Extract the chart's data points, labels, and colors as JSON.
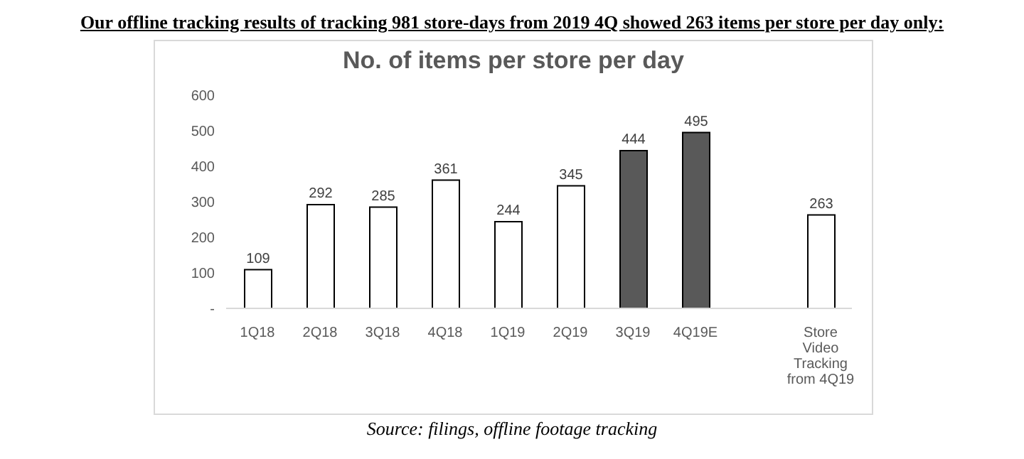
{
  "chart_data": {
    "type": "bar",
    "title": "Our offline tracking results of tracking 981 store-days from 2019 4Q showed 263 items per store per day only:",
    "subtitle": "No. of items per store per day",
    "categories": [
      "1Q18",
      "2Q18",
      "3Q18",
      "4Q18",
      "1Q19",
      "2Q19",
      "3Q19",
      "4Q19E",
      null,
      "Store Video Tracking from 4Q19"
    ],
    "values": [
      109,
      292,
      285,
      361,
      244,
      345,
      444,
      495,
      null,
      263
    ],
    "colors": [
      "#ffffff",
      "#ffffff",
      "#ffffff",
      "#ffffff",
      "#ffffff",
      "#ffffff",
      "#595959",
      "#595959",
      "#ffffff",
      "#ffffff"
    ],
    "ylim": [
      0,
      600
    ],
    "yticks": [
      {
        "value": 0,
        "label": "-"
      },
      100,
      200,
      300,
      400,
      500,
      600
    ],
    "grid": false,
    "legend": false,
    "data_labels": true,
    "annotations": [
      "Source: filings, offline footage tracking"
    ]
  }
}
